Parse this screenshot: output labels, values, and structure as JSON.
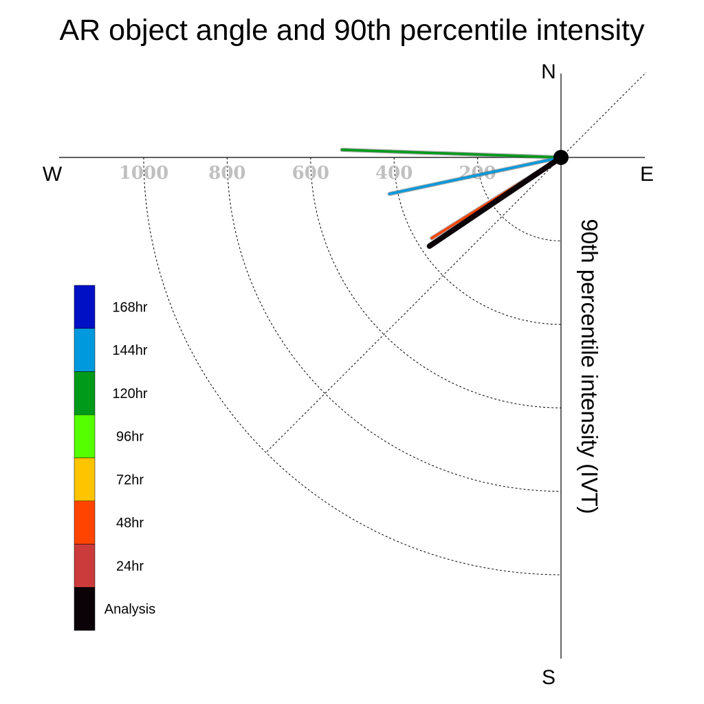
{
  "chart_data": {
    "type": "polar-vector",
    "title": "AR object angle and 90th percentile intensity",
    "radial_label": "90th percentile intensity (IVT)",
    "compass": {
      "north": "N",
      "south": "S",
      "east": "E",
      "west": "W"
    },
    "radial_ticks": [
      200,
      400,
      600,
      800,
      1000
    ],
    "radial_max": 1200,
    "grid": true,
    "legend_position": "left",
    "series": [
      {
        "name": "120hr",
        "color": "#009a1a",
        "intensity": 525,
        "direction_deg": 272
      },
      {
        "name": "144hr",
        "color": "#0099dd",
        "intensity": 420,
        "direction_deg": 258
      },
      {
        "name": "48hr",
        "color": "#ff4400",
        "intensity": 365,
        "direction_deg": 238
      },
      {
        "name": "24hr",
        "color": "#cc3b3b",
        "intensity": 380,
        "direction_deg": 236
      },
      {
        "name": "Analysis",
        "color": "#0b0208",
        "intensity": 380,
        "direction_deg": 236
      }
    ],
    "legend": [
      {
        "label": "168hr",
        "color": "#0010c4"
      },
      {
        "label": "144hr",
        "color": "#0099dd"
      },
      {
        "label": "120hr",
        "color": "#009a1a"
      },
      {
        "label": "96hr",
        "color": "#55ff00"
      },
      {
        "label": "72hr",
        "color": "#ffc400"
      },
      {
        "label": "48hr",
        "color": "#ff4400"
      },
      {
        "label": "24hr",
        "color": "#cc3b3b"
      },
      {
        "label": "Analysis",
        "color": "#0b0208"
      }
    ]
  }
}
